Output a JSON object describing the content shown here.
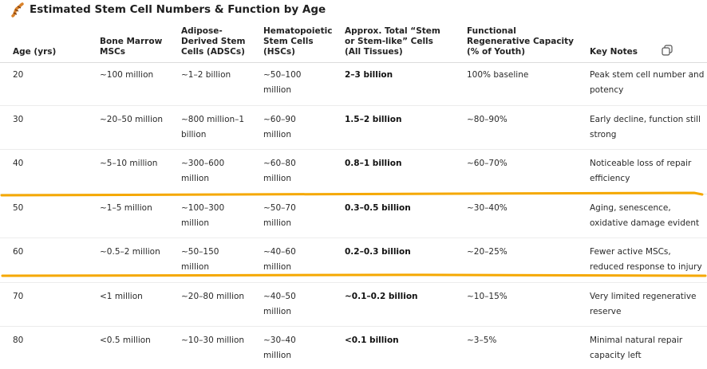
{
  "header": {
    "title": "Estimated Stem Cell Numbers & Function by Age"
  },
  "table": {
    "columns": [
      "Age (yrs)",
      "Bone Marrow MSCs",
      "Adipose-Derived Stem Cells (ADSCs)",
      "Hematopoietic Stem Cells (HSCs)",
      "Approx. Total “Stem or Stem-like” Cells (All Tissues)",
      "Functional Regenerative Capacity (% of Youth)",
      "Key Notes"
    ],
    "rows": [
      [
        "20",
        "~100 million",
        "~1–2 billion",
        "~50–100 million",
        "2–3 billion",
        "100% baseline",
        "Peak stem cell number and potency"
      ],
      [
        "30",
        "~20–50 million",
        "~800 million–1 billion",
        "~60–90 million",
        "1.5–2 billion",
        "~80–90%",
        "Early decline, function still strong"
      ],
      [
        "40",
        "~5–10 million",
        "~300–600 million",
        "~60–80 million",
        "0.8–1 billion",
        "~60–70%",
        "Noticeable loss of repair efficiency"
      ],
      [
        "50",
        "~1–5 million",
        "~100–300 million",
        "~50–70 million",
        "0.3–0.5 billion",
        "~30–40%",
        "Aging, senescence, oxidative damage evident"
      ],
      [
        "60",
        "~0.5–2 million",
        "~50–150 million",
        "~40–60 million",
        "0.2–0.3 billion",
        "~20–25%",
        "Fewer active MSCs, reduced response to injury"
      ],
      [
        "70",
        "<1 million",
        "~20–80 million",
        "~40–50 million",
        "~0.1–0.2 billion",
        "~10–15%",
        "Very limited regenerative reserve"
      ],
      [
        "80",
        "<0.5 million",
        "~10–30 million",
        "~30–40 million",
        "<0.1 billion",
        "~3–5%",
        "Minimal natural repair capacity left"
      ]
    ]
  }
}
